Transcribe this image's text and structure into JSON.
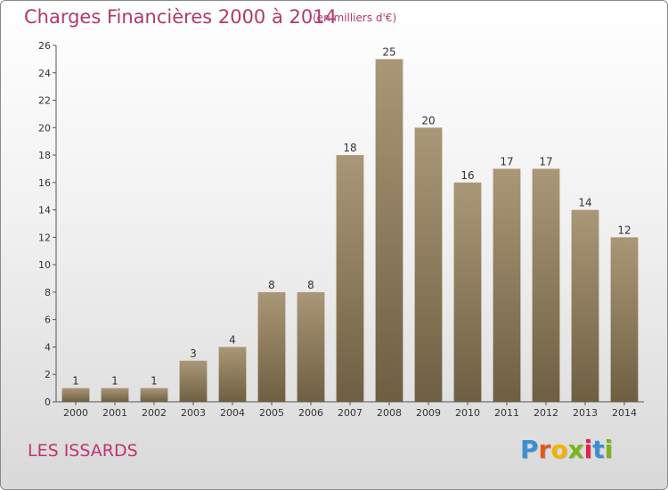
{
  "header": {
    "title": "Charges Financières 2000 à 2014",
    "subtitle": "(en milliers d'€)"
  },
  "footer": {
    "commune": "LES ISSARDS",
    "brand_letters": [
      "P",
      "r",
      "o",
      "x",
      "i",
      "t",
      "i"
    ],
    "brand_colors": [
      "#3a8fd4",
      "#e05a1e",
      "#f0b400",
      "#7ab51d",
      "#e0234e",
      "#3a8fd4",
      "#7ab51d"
    ]
  },
  "chart_data": {
    "type": "bar",
    "title": "Charges Financières 2000 à 2014",
    "subtitle": "(en milliers d'€)",
    "categories": [
      "2000",
      "2001",
      "2002",
      "2003",
      "2004",
      "2005",
      "2006",
      "2007",
      "2008",
      "2009",
      "2010",
      "2011",
      "2012",
      "2013",
      "2014"
    ],
    "values": [
      1,
      1,
      1,
      3,
      4,
      8,
      8,
      18,
      25,
      20,
      16,
      17,
      17,
      14,
      12
    ],
    "xlabel": "",
    "ylabel": "",
    "ylim": [
      0,
      26
    ],
    "yticks": [
      0,
      2,
      4,
      6,
      8,
      10,
      12,
      14,
      16,
      18,
      20,
      22,
      24,
      26
    ],
    "grid": false,
    "legend": "none",
    "data_labels": true,
    "bar_color": "#8b7a5c"
  }
}
